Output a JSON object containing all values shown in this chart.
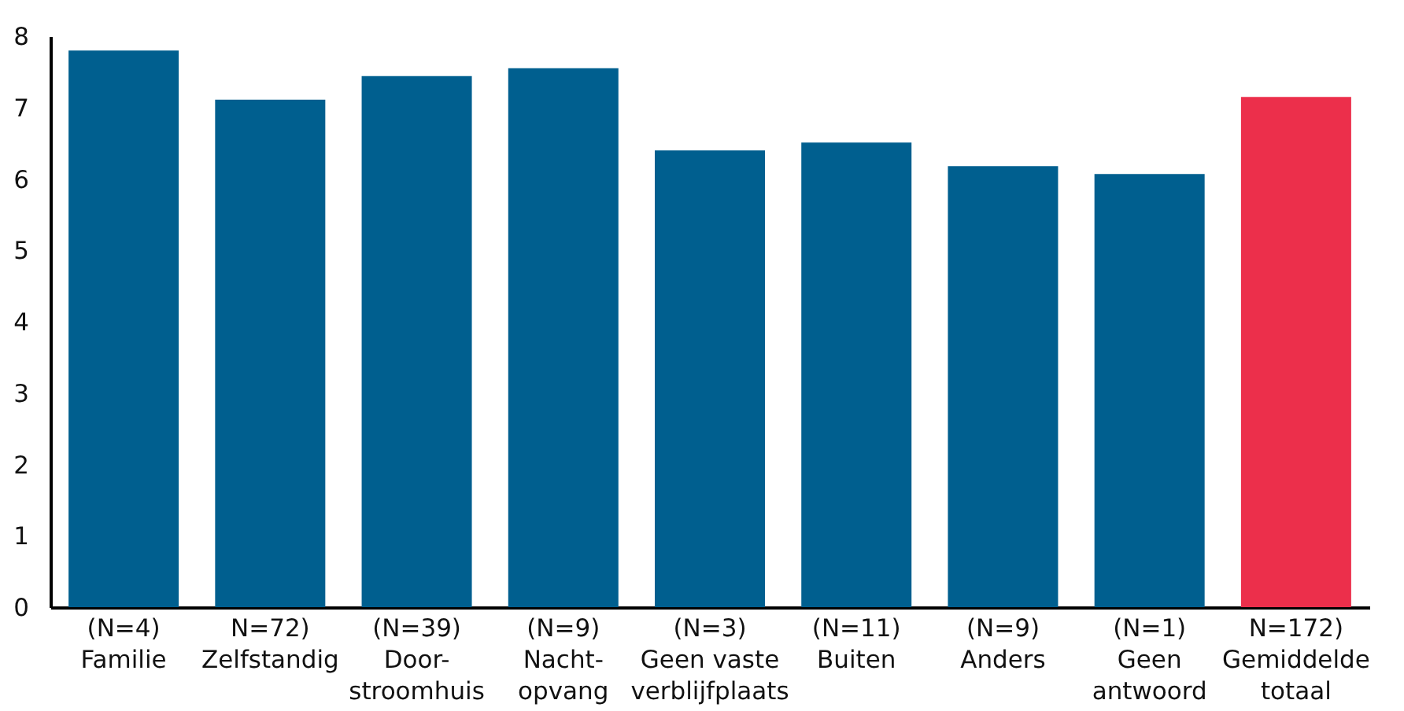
{
  "chart_data": {
    "type": "bar",
    "categories": [
      "(N=4)\nFamilie",
      "N=72)\nZelfstandig",
      "(N=39)\nDoor-\nstroomhuis",
      "(N=9)\nNacht-\nopvang",
      "(N=3)\nGeen vaste\nverblijfplaats",
      "(N=11)\nBuiten",
      "(N=9)\nAnders",
      "(N=1)\nGeen\nantwoord",
      "N=172)\nGemiddelde\ntotaal"
    ],
    "values": [
      7.8,
      7.11,
      7.44,
      7.55,
      6.4,
      6.51,
      6.18,
      6.07,
      7.15
    ],
    "colors": [
      "#005f8f",
      "#005f8f",
      "#005f8f",
      "#005f8f",
      "#005f8f",
      "#005f8f",
      "#005f8f",
      "#005f8f",
      "#ec2f4b"
    ],
    "ylim": [
      0,
      8
    ],
    "yticks": [
      0,
      1,
      2,
      3,
      4,
      5,
      6,
      7,
      8
    ],
    "grid": false
  }
}
